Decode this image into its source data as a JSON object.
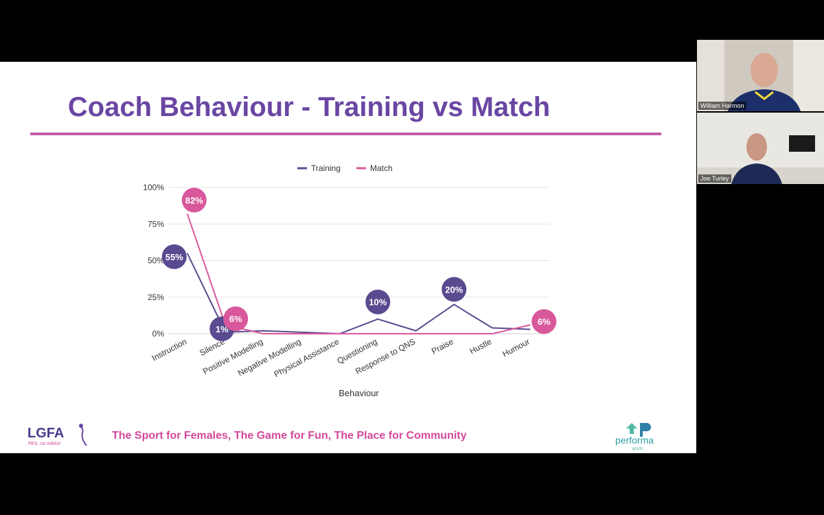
{
  "slide": {
    "title": "Coach Behaviour - Training vs Match",
    "tagline": "The Sport for Females, The Game for Fun, The Place for Community",
    "logo_text": "LGFA",
    "logo_subtext": "PEIL na mBAN",
    "brand_name": "performa",
    "brand_sub": "sports"
  },
  "participants": [
    {
      "name": "William Harmon"
    },
    {
      "name": "Joe Turley"
    }
  ],
  "colors": {
    "title": "#6a46a3",
    "rule": "#c45fa8",
    "training": "#5a4a90",
    "match": "#d9589b",
    "tagline": "#d4489a"
  },
  "chart_data": {
    "type": "line",
    "categories": [
      "Instruction",
      "Silence",
      "Positive Modelling",
      "Negative Modelling",
      "Physical Assistance",
      "Questioning",
      "Response to QNS",
      "Praise",
      "Hustle",
      "Humour"
    ],
    "series": [
      {
        "name": "Training",
        "values": [
          55,
          1,
          2,
          1,
          0,
          10,
          2,
          20,
          4,
          3
        ]
      },
      {
        "name": "Match",
        "values": [
          82,
          6,
          0,
          0,
          0,
          0,
          0,
          0,
          0,
          6
        ]
      }
    ],
    "annotations": [
      {
        "series": "Match",
        "category": "Instruction",
        "label": "82%",
        "value": 82
      },
      {
        "series": "Training",
        "category": "Instruction",
        "label": "55%",
        "value": 55
      },
      {
        "series": "Training",
        "category": "Silence",
        "label": "1%",
        "value": 1
      },
      {
        "series": "Match",
        "category": "Silence",
        "label": "6%",
        "value": 6
      },
      {
        "series": "Training",
        "category": "Questioning",
        "label": "10%",
        "value": 10
      },
      {
        "series": "Training",
        "category": "Praise",
        "label": "20%",
        "value": 20
      },
      {
        "series": "Match",
        "category": "Humour",
        "label": "6%",
        "value": 6
      }
    ],
    "yticks": [
      "100%",
      "75%",
      "50%",
      "25%",
      "0%"
    ],
    "ytick_values": [
      100,
      75,
      50,
      25,
      0
    ],
    "ylim": [
      0,
      100
    ],
    "xlabel": "Behaviour",
    "ylabel": "",
    "legend": "top",
    "grid": true
  }
}
